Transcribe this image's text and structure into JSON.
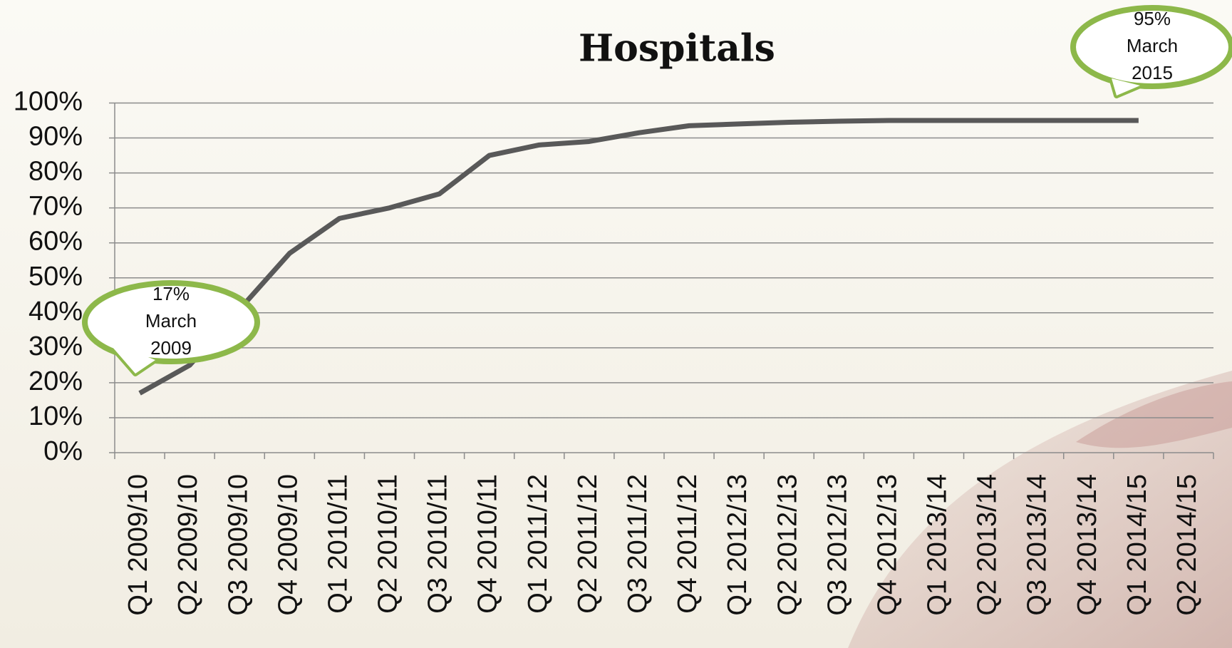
{
  "chart_data": {
    "type": "line",
    "title": "Hospitals",
    "categories": [
      "Q1 2009/10",
      "Q2 2009/10",
      "Q3 2009/10",
      "Q4 2009/10",
      "Q1 2010/11",
      "Q2 2010/11",
      "Q3 2010/11",
      "Q4 2010/11",
      "Q1 2011/12",
      "Q2 2011/12",
      "Q3 2011/12",
      "Q4 2011/12",
      "Q1 2012/13",
      "Q2 2012/13",
      "Q3 2012/13",
      "Q4 2012/13",
      "Q1 2013/14",
      "Q2 2013/14",
      "Q3 2013/14",
      "Q4 2013/14",
      "Q1 2014/15",
      "Q2 2014/15"
    ],
    "series": [
      {
        "color": "#595959",
        "values": [
          17,
          25,
          41,
          57,
          67,
          70,
          74,
          85,
          88,
          89,
          91.5,
          93.5,
          94,
          94.5,
          94.8,
          95,
          95,
          95,
          95,
          95,
          95,
          null
        ]
      }
    ],
    "ylim": [
      0,
      100
    ],
    "yticks": [
      {
        "value": 0,
        "label": "0%"
      },
      {
        "value": 10,
        "label": "10%"
      },
      {
        "value": 20,
        "label": "20%"
      },
      {
        "value": 30,
        "label": "30%"
      },
      {
        "value": 40,
        "label": "40%"
      },
      {
        "value": 50,
        "label": "50%"
      },
      {
        "value": 60,
        "label": "60%"
      },
      {
        "value": 70,
        "label": "70%"
      },
      {
        "value": 80,
        "label": "80%"
      },
      {
        "value": 90,
        "label": "90%"
      },
      {
        "value": 100,
        "label": "100%"
      }
    ],
    "grid": true,
    "annotations": [
      {
        "lines": [
          "17%",
          "March",
          "2009"
        ]
      },
      {
        "lines": [
          "95%",
          "March",
          "2015"
        ]
      }
    ]
  }
}
